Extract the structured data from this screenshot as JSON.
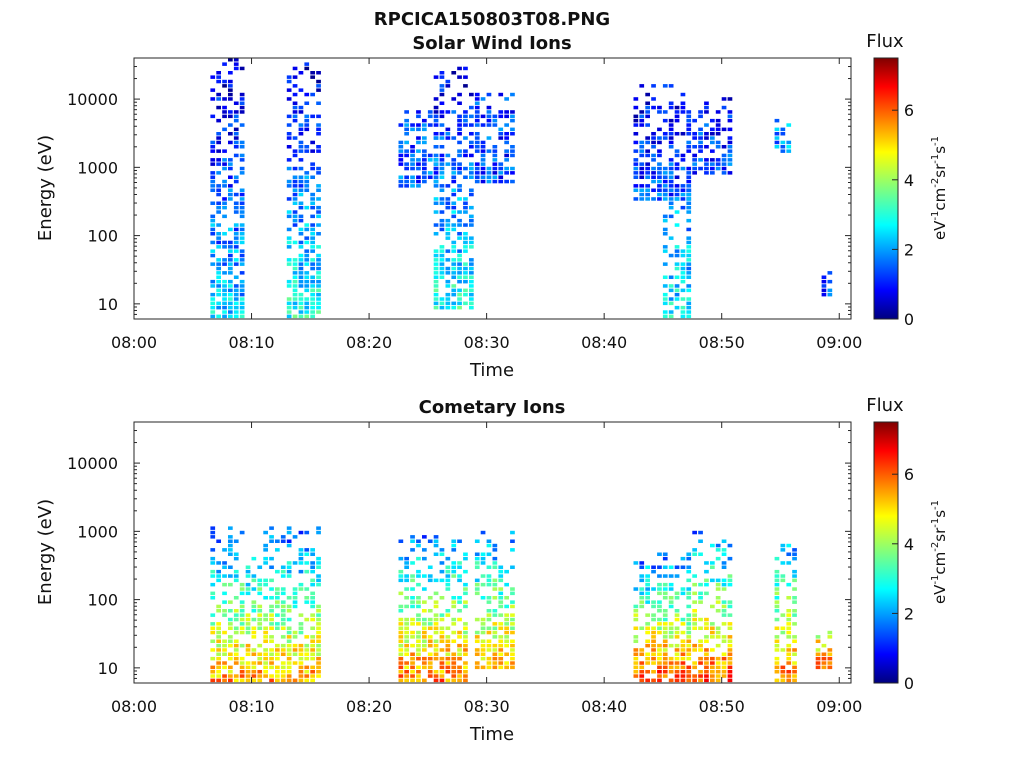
{
  "figure_title": "RPCICA150803T08.PNG",
  "chart_data": [
    {
      "type": "heatmap",
      "title": "Solar Wind Ions",
      "xlabel": "Time",
      "ylabel": "Energy (eV)",
      "yscale": "log",
      "xlim": [
        "08:00",
        "09:01"
      ],
      "ylim": [
        6,
        40000
      ],
      "x_ticks": [
        "08:00",
        "08:10",
        "08:20",
        "08:30",
        "08:40",
        "08:50",
        "09:00"
      ],
      "y_ticks": [
        "10",
        "100",
        "1000",
        "10000"
      ],
      "y_tick_values": [
        10,
        100,
        1000,
        10000
      ],
      "colorbar": {
        "label": "Flux",
        "unit": "eV-1cm-2sr-1s-1",
        "range": [
          0,
          7.5
        ],
        "ticks": [
          "0",
          "2",
          "4",
          "6"
        ],
        "tick_values": [
          0,
          2,
          4,
          6
        ]
      },
      "bursts": [
        {
          "t_start_min": 6.5,
          "t_end_min": 9.5,
          "e_min": 6,
          "e_max": 38000,
          "low_energy_flux": 2.5,
          "high_energy_flux": 0.6
        },
        {
          "t_start_min": 13.0,
          "t_end_min": 16.0,
          "e_min": 6,
          "e_max": 35000,
          "low_energy_flux": 3.0,
          "high_energy_flux": 0.6
        },
        {
          "t_start_min": 22.5,
          "t_end_min": 26.0,
          "e_min": 500,
          "e_max": 8000,
          "low_energy_flux": 1.6,
          "high_energy_flux": 1.6
        },
        {
          "t_start_min": 25.5,
          "t_end_min": 29.0,
          "e_min": 8,
          "e_max": 30000,
          "low_energy_flux": 3.0,
          "high_energy_flux": 0.7
        },
        {
          "t_start_min": 29.0,
          "t_end_min": 32.5,
          "e_min": 600,
          "e_max": 12000,
          "low_energy_flux": 1.4,
          "high_energy_flux": 1.4
        },
        {
          "t_start_min": 42.5,
          "t_end_min": 47.5,
          "e_min": 300,
          "e_max": 16000,
          "low_energy_flux": 1.5,
          "high_energy_flux": 0.8
        },
        {
          "t_start_min": 45.0,
          "t_end_min": 47.5,
          "e_min": 6,
          "e_max": 500,
          "low_energy_flux": 2.8,
          "high_energy_flux": 1.8
        },
        {
          "t_start_min": 47.5,
          "t_end_min": 51.0,
          "e_min": 800,
          "e_max": 10000,
          "low_energy_flux": 1.5,
          "high_energy_flux": 1.0
        },
        {
          "t_start_min": 54.5,
          "t_end_min": 56.0,
          "e_min": 1500,
          "e_max": 5000,
          "low_energy_flux": 2.0,
          "high_energy_flux": 2.0
        },
        {
          "t_start_min": 58.5,
          "t_end_min": 59.5,
          "e_min": 12,
          "e_max": 35,
          "low_energy_flux": 1.6,
          "high_energy_flux": 0.8
        }
      ]
    },
    {
      "type": "heatmap",
      "title": "Cometary Ions",
      "xlabel": "Time",
      "ylabel": "Energy (eV)",
      "yscale": "log",
      "xlim": [
        "08:00",
        "09:01"
      ],
      "ylim": [
        6,
        40000
      ],
      "x_ticks": [
        "08:00",
        "08:10",
        "08:20",
        "08:30",
        "08:40",
        "08:50",
        "09:00"
      ],
      "y_ticks": [
        "10",
        "100",
        "1000",
        "10000"
      ],
      "y_tick_values": [
        10,
        100,
        1000,
        10000
      ],
      "colorbar": {
        "label": "Flux",
        "unit": "eV-1cm-2sr-1s-1",
        "range": [
          0,
          7.5
        ],
        "ticks": [
          "0",
          "2",
          "4",
          "6"
        ],
        "tick_values": [
          0,
          2,
          4,
          6
        ]
      },
      "bursts": [
        {
          "t_start_min": 6.5,
          "t_end_min": 16.0,
          "e_min": 6,
          "e_max": 1100,
          "low_energy_flux": 5.5,
          "high_energy_flux": 1.5
        },
        {
          "t_start_min": 22.5,
          "t_end_min": 28.5,
          "e_min": 6,
          "e_max": 900,
          "low_energy_flux": 5.8,
          "high_energy_flux": 1.8
        },
        {
          "t_start_min": 29.0,
          "t_end_min": 32.5,
          "e_min": 10,
          "e_max": 1000,
          "low_energy_flux": 5.3,
          "high_energy_flux": 1.8
        },
        {
          "t_start_min": 42.5,
          "t_end_min": 47.5,
          "e_min": 6,
          "e_max": 500,
          "low_energy_flux": 6.2,
          "high_energy_flux": 1.5
        },
        {
          "t_start_min": 47.5,
          "t_end_min": 51.0,
          "e_min": 6,
          "e_max": 1000,
          "low_energy_flux": 6.0,
          "high_energy_flux": 1.8
        },
        {
          "t_start_min": 54.5,
          "t_end_min": 56.5,
          "e_min": 6,
          "e_max": 800,
          "low_energy_flux": 5.8,
          "high_energy_flux": 1.8
        },
        {
          "t_start_min": 58.0,
          "t_end_min": 59.5,
          "e_min": 10,
          "e_max": 40,
          "low_energy_flux": 5.8,
          "high_energy_flux": 4.0
        }
      ]
    }
  ]
}
